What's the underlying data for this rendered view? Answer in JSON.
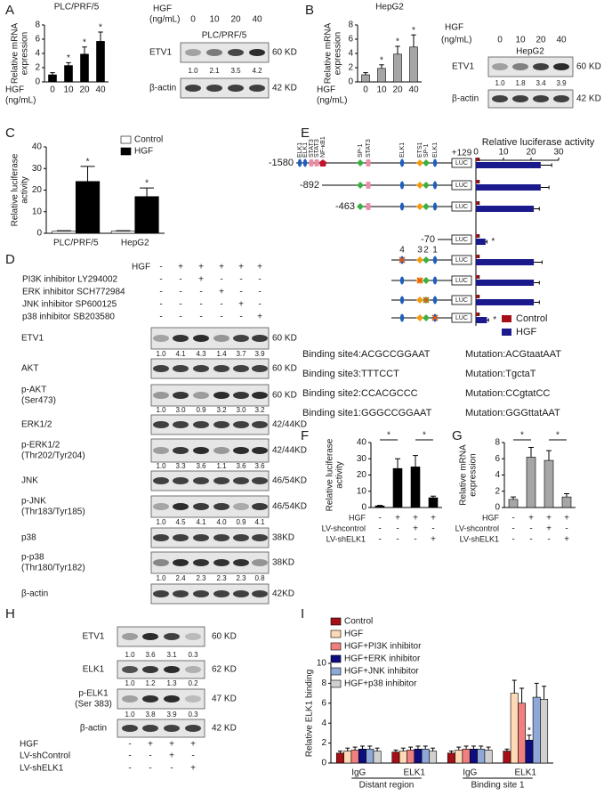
{
  "panel_labels": [
    "A",
    "B",
    "C",
    "D",
    "E",
    "F",
    "G",
    "H",
    "I"
  ],
  "chart_data": [
    {
      "type": "bar",
      "title": "PLC/PRF/5",
      "ylabel": [
        "Relative mRNA",
        "expression"
      ],
      "xlabel": [
        "HGF",
        "(ng/mL)"
      ],
      "categories": [
        "0",
        "10",
        "20",
        "40"
      ],
      "values": [
        1,
        2.3,
        3.9,
        5.7
      ],
      "errors": [
        0.3,
        0.4,
        1,
        1.3
      ],
      "stars": [
        null,
        "*",
        "*",
        "*"
      ],
      "color": "#000000",
      "ylim": [
        0,
        8
      ],
      "yticks": [
        0,
        2,
        4,
        6,
        8
      ]
    },
    {
      "type": "bar",
      "title": "HepG2",
      "ylabel": [
        "Relative mRNA",
        "expression"
      ],
      "xlabel": [
        "HGF",
        "(ng/mL)"
      ],
      "categories": [
        "0",
        "10",
        "20",
        "40"
      ],
      "values": [
        1,
        1.9,
        3.9,
        4.9
      ],
      "errors": [
        0.3,
        0.5,
        1.1,
        1.7
      ],
      "stars": [
        null,
        "*",
        "*",
        "*"
      ],
      "color": "#a6a6a6",
      "ylim": [
        0,
        8
      ],
      "yticks": [
        0,
        2,
        4,
        6,
        8
      ]
    },
    {
      "type": "bar",
      "ylabel": [
        "Relative luciferase",
        "activity"
      ],
      "categories": [
        "PLC/PRF/5",
        "HepG2"
      ],
      "series": [
        {
          "name": "Control",
          "color": "#ffffff",
          "values": [
            1,
            1
          ],
          "errors": [
            0.2,
            0.2
          ]
        },
        {
          "name": "HGF",
          "color": "#000000",
          "values": [
            24,
            17
          ],
          "errors": [
            7,
            4
          ],
          "stars": [
            "*",
            "*"
          ]
        }
      ],
      "ylim": [
        0,
        40
      ],
      "yticks": [
        0,
        10,
        20,
        30,
        40
      ]
    },
    {
      "type": "hbar",
      "title": "Relative luciferase activity",
      "series": [
        {
          "name": "Control",
          "color": "#a50f15",
          "values": [
            1,
            1,
            1,
            1,
            1,
            1,
            1,
            1
          ],
          "errors": [
            0.2,
            0.2,
            0.2,
            0.2,
            0.2,
            0.2,
            0.2,
            0.2
          ]
        },
        {
          "name": "HGF",
          "color": "#1a1a8c",
          "values": [
            23.5,
            23.5,
            21,
            3.5,
            21,
            21,
            21,
            4
          ],
          "errors": [
            4,
            3,
            2,
            0.5,
            3,
            2,
            2,
            0.6
          ],
          "stars": [
            null,
            null,
            null,
            "*",
            null,
            null,
            null,
            "*"
          ]
        }
      ],
      "xlim": [
        0,
        30
      ],
      "xticks": [
        0,
        10,
        20,
        30
      ]
    },
    {
      "type": "bar",
      "ylabel": [
        "Relative luciferase",
        "activity"
      ],
      "values": [
        1,
        24,
        25,
        6
      ],
      "errors": [
        0.3,
        6,
        7,
        1
      ],
      "color": "#000000",
      "treatments": [
        {
          "name": "HGF",
          "signs": [
            "-",
            "+",
            "+",
            "+"
          ]
        },
        {
          "name": "LV-shcontrol",
          "signs": [
            "-",
            "-",
            "+",
            "-"
          ]
        },
        {
          "name": "LV-shELK1",
          "signs": [
            "-",
            "-",
            "-",
            "+"
          ]
        }
      ],
      "significance": [
        "*",
        "*"
      ],
      "ylim": [
        0,
        40
      ],
      "yticks": [
        0,
        10,
        20,
        30,
        40
      ]
    },
    {
      "type": "bar",
      "ylabel": [
        "Relative mRNA",
        "expression"
      ],
      "values": [
        1,
        6.2,
        5.8,
        1.3
      ],
      "errors": [
        0.3,
        1.2,
        1.2,
        0.4
      ],
      "color": "#a6a6a6",
      "treatments": [
        {
          "name": "HGF",
          "signs": [
            "-",
            "+",
            "+",
            "+"
          ]
        },
        {
          "name": "LV-shcontrol",
          "signs": [
            "-",
            "-",
            "+",
            "-"
          ]
        },
        {
          "name": "LV-shELK1",
          "signs": [
            "-",
            "-",
            "-",
            "+"
          ]
        }
      ],
      "significance": [
        "*",
        "*"
      ],
      "ylim": [
        0,
        8
      ],
      "yticks": [
        0,
        2,
        4,
        6,
        8
      ]
    },
    {
      "type": "bar",
      "ylabel": [
        "Relative ELK1 binding"
      ],
      "categories": [
        "IgG",
        "ELK1",
        "IgG",
        "ELK1"
      ],
      "groups": [
        "Distant region",
        "Binding site 1"
      ],
      "series": [
        {
          "name": "Control",
          "color": "#a50f15",
          "values": [
            1,
            1.1,
            1,
            1.2
          ],
          "errors": [
            0.2,
            0.2,
            0.2,
            0.2
          ]
        },
        {
          "name": "HGF",
          "color": "#fdd9b5",
          "values": [
            1.2,
            1.2,
            1.3,
            7
          ],
          "errors": [
            0.3,
            0.3,
            0.3,
            1.3
          ]
        },
        {
          "name": "HGF+PI3K inhibitor",
          "color": "#f08080",
          "values": [
            1.3,
            1.3,
            1.4,
            6
          ],
          "errors": [
            0.3,
            0.3,
            0.3,
            1.5
          ]
        },
        {
          "name": "HGF+ERK inhibitor",
          "color": "#0d0d80",
          "values": [
            1.4,
            1.4,
            1.4,
            2.3
          ],
          "errors": [
            0.3,
            0.3,
            0.3,
            0.5
          ],
          "stars": [
            null,
            null,
            null,
            "*"
          ]
        },
        {
          "name": "HGF+JNK inhibitor",
          "color": "#8fa8d8",
          "values": [
            1.4,
            1.4,
            1.4,
            6.6
          ],
          "errors": [
            0.3,
            0.3,
            0.3,
            1.4
          ]
        },
        {
          "name": "HGF+p38 inhibitor",
          "color": "#d0d0d0",
          "values": [
            1.2,
            1.2,
            1.3,
            6.4
          ],
          "errors": [
            0.3,
            0.3,
            0.3,
            1.3
          ]
        }
      ],
      "ylim": [
        0,
        10
      ],
      "yticks": [
        0,
        2,
        4,
        6,
        8,
        10
      ]
    }
  ],
  "blots": {
    "A": {
      "title": "PLC/PRF/5",
      "header": [
        "HGF",
        "(ng/mL)"
      ],
      "columns": [
        "0",
        "10",
        "20",
        "40"
      ],
      "rows": [
        {
          "label": "ETV1",
          "size": "60 KD",
          "quant": [
            "1.0",
            "2.1",
            "3.5",
            "4.2"
          ]
        },
        {
          "label": "β-actin",
          "size": "42 KD"
        }
      ]
    },
    "B": {
      "title": "HepG2",
      "header": [
        "HGF",
        "(ng/mL)"
      ],
      "columns": [
        "0",
        "10",
        "20",
        "40"
      ],
      "rows": [
        {
          "label": "ETV1",
          "size": "60 KD",
          "quant": [
            "1.0",
            "1.8",
            "3.4",
            "3.9"
          ]
        },
        {
          "label": "β-actin",
          "size": "42 KD"
        }
      ]
    },
    "D": {
      "treatments": [
        {
          "name": "HGF",
          "signs": [
            "-",
            "+",
            "+",
            "+",
            "+",
            "+"
          ]
        },
        {
          "name": "PI3K inhibitor LY294002",
          "signs": [
            "-",
            "-",
            "+",
            "-",
            "-",
            "-"
          ]
        },
        {
          "name": "ERK inhibitor SCH772984",
          "signs": [
            "-",
            "-",
            "-",
            "+",
            "-",
            "-"
          ]
        },
        {
          "name": "JNK  inhibitor SP600125",
          "signs": [
            "-",
            "-",
            "-",
            "-",
            "+",
            "-"
          ]
        },
        {
          "name": "p38 inhibitor SB203580",
          "signs": [
            "-",
            "-",
            "-",
            "-",
            "-",
            "+"
          ]
        }
      ],
      "rows": [
        {
          "label": "ETV1",
          "size": "60 KD",
          "quant": [
            "1.0",
            "4.1",
            "4.3",
            "1.4",
            "3.7",
            "3.9"
          ]
        },
        {
          "label": "AKT",
          "size": "60 KD"
        },
        {
          "label": "p-AKT",
          "sublabel": "(Ser473)",
          "size": "60 KD",
          "quant": [
            "1.0",
            "3.0",
            "0.9",
            "3.2",
            "3.0",
            "3.2"
          ]
        },
        {
          "label": "ERK1/2",
          "size": "42/44KD"
        },
        {
          "label": "p-ERK1/2",
          "sublabel": "(Thr202/Tyr204)",
          "size": "42/44KD",
          "quant": [
            "1.0",
            "3.3",
            "3.6",
            "1.1",
            "3.6",
            "3.6"
          ]
        },
        {
          "label": "JNK",
          "size": "46/54KD"
        },
        {
          "label": "p-JNK",
          "sublabel": "(Thr183/Tyr185)",
          "size": "46/54KD",
          "quant": [
            "1.0",
            "4.5",
            "4.1",
            "4.0",
            "0.9",
            "4.1"
          ]
        },
        {
          "label": "p38",
          "size": "38KD"
        },
        {
          "label": "p-p38",
          "sublabel": "(Thr180/Tyr182)",
          "size": "38KD",
          "quant": [
            "1.0",
            "2.4",
            "2.3",
            "2.3",
            "2.3",
            "0.8"
          ]
        },
        {
          "label": "β-actin",
          "size": "42KD"
        }
      ]
    },
    "H": {
      "treatments": [
        {
          "name": "HGF",
          "signs": [
            "-",
            "+",
            "+",
            "+"
          ]
        },
        {
          "name": "LV-shControl",
          "signs": [
            "-",
            "-",
            "+",
            "-"
          ]
        },
        {
          "name": "LV-shELK1",
          "signs": [
            "-",
            "-",
            "-",
            "+"
          ]
        }
      ],
      "rows": [
        {
          "label": "ETV1",
          "size": "60 KD",
          "quant": [
            "1.0",
            "3.6",
            "3.1",
            "0.3"
          ]
        },
        {
          "label": "ELK1",
          "size": "62 KD",
          "quant": [
            "1.0",
            "1.2",
            "1.3",
            "0.2"
          ]
        },
        {
          "label": "p-ELK1",
          "sublabel": "(Ser 383)",
          "size": "47 KD",
          "quant": [
            "1.0",
            "3.8",
            "3.9",
            "0.3"
          ]
        },
        {
          "label": "β-actin",
          "size": "42 KD"
        }
      ]
    }
  },
  "promoter": {
    "positions": [
      "-1580",
      "-892",
      "-463",
      "-70"
    ],
    "end": "+129",
    "reporter": "LUC",
    "factors": [
      "ELK1",
      "ELK1",
      "STAT3",
      "STAT3",
      "NF-κB1",
      "SP-1",
      "STAT3",
      "ELK1",
      "ETS1",
      "SP-1",
      "ELK1"
    ],
    "site_numbers": [
      "4",
      "3",
      "2",
      "1"
    ]
  },
  "binding_sites": [
    {
      "site": "Binding site4:ACGCCGGAAT",
      "mutation": "Mutation:ACGtaatAAT"
    },
    {
      "site": "Binding site3:TTTCCT",
      "mutation": "Mutation:TgctaT"
    },
    {
      "site": "Binding site2:CCACGCCC",
      "mutation": "Mutation:CCgtatCC"
    },
    {
      "site": "Binding site1:GGGCCGGAAT",
      "mutation": "Mutation:GGGttatAAT"
    }
  ]
}
